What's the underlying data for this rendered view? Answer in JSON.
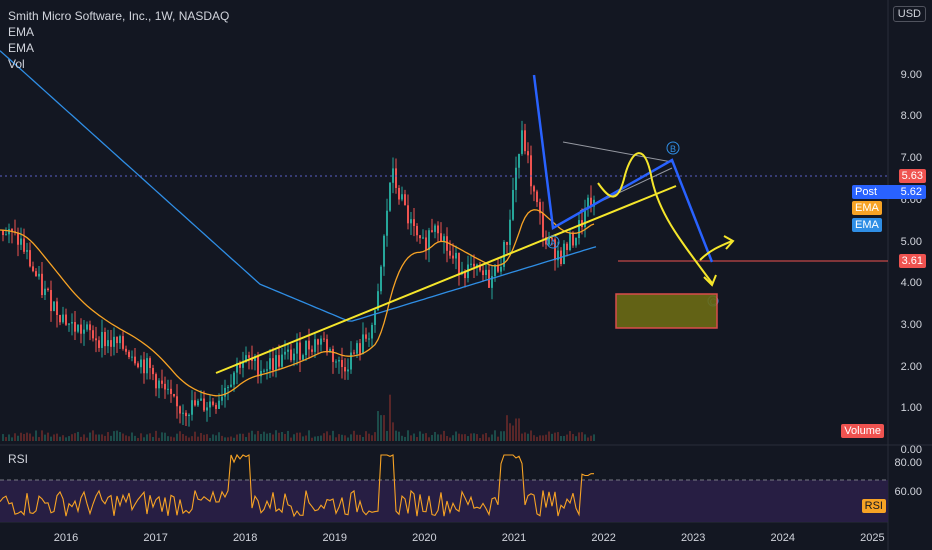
{
  "header": {
    "title": "Smith Micro Software, Inc., 1W, NASDAQ",
    "indicators": [
      "EMA",
      "EMA",
      "Vol"
    ],
    "currency": "USD"
  },
  "price_axis": {
    "ticks": [
      "9.00",
      "8.00",
      "7.00",
      "6.00",
      "5.00",
      "4.00",
      "3.00",
      "2.00",
      "1.00",
      "0.00"
    ]
  },
  "rsi_axis": {
    "ticks": [
      "80.00",
      "60.00"
    ]
  },
  "time_axis": {
    "ticks": [
      "2016",
      "2017",
      "2018",
      "2019",
      "2020",
      "2021",
      "2022",
      "2023",
      "2024",
      "2025"
    ]
  },
  "price_tags": {
    "last": "5.63",
    "post_label": "Post",
    "post_value": "5.62",
    "ema1": "EMA",
    "ema2": "EMA",
    "level": "3.61",
    "volume": "Volume",
    "rsi": "RSI"
  },
  "rsi_pane": {
    "label": "RSI"
  },
  "drawings": {
    "point_a": "A",
    "point_b": "B",
    "point_c": "C"
  },
  "colors": {
    "background": "#131722",
    "up": "#26a69a",
    "down": "#ef5350",
    "ema_fast": "#f7a325",
    "ema_slow": "#2f8ee5",
    "trendline": "#f5e62b",
    "pattern": "#2962ff",
    "rsi": "#f7a325",
    "target_box": "#6b6b14"
  }
}
